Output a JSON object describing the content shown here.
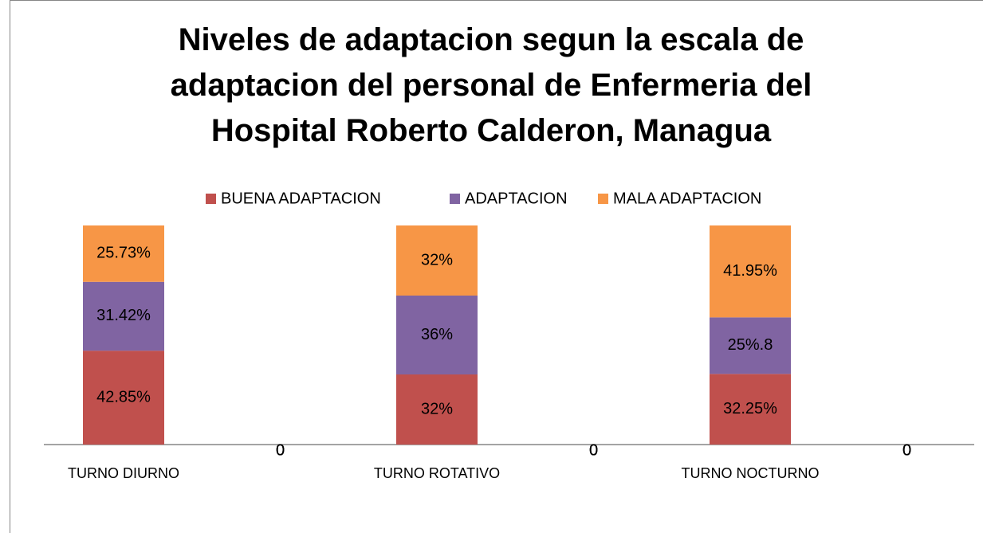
{
  "chart_data": {
    "type": "stacked_bar",
    "title": "Niveles de adaptacion segun la escala de adaptacion del personal de Enfermeria del Hospital Roberto Calderon,  Managua",
    "categories": [
      "TURNO DIURNO",
      null,
      "TURNO ROTATIVO",
      null,
      "TURNO NOCTURNO",
      null
    ],
    "series": [
      {
        "name": "BUENA ADAPTACION",
        "color": "#c0504d",
        "values": [
          42.85,
          0,
          32,
          0,
          32.25,
          0
        ],
        "value_labels": [
          "42.85%",
          "0",
          "32%",
          "0",
          "32.25%",
          "0"
        ]
      },
      {
        "name": "ADAPTACION",
        "color": "#8064a2",
        "values": [
          31.42,
          0,
          36,
          0,
          25.8,
          0
        ],
        "value_labels": [
          "31.42%",
          "0",
          "36%",
          "0",
          "25%.8",
          "0"
        ]
      },
      {
        "name": "MALA ADAPTACION",
        "color": "#f79646",
        "values": [
          25.73,
          0,
          32,
          0,
          41.95,
          0
        ],
        "value_labels": [
          "25.73%",
          "0",
          "32%",
          "0",
          "41.95%",
          "0"
        ]
      }
    ],
    "ylim": [
      0,
      100
    ],
    "legend": "top"
  }
}
